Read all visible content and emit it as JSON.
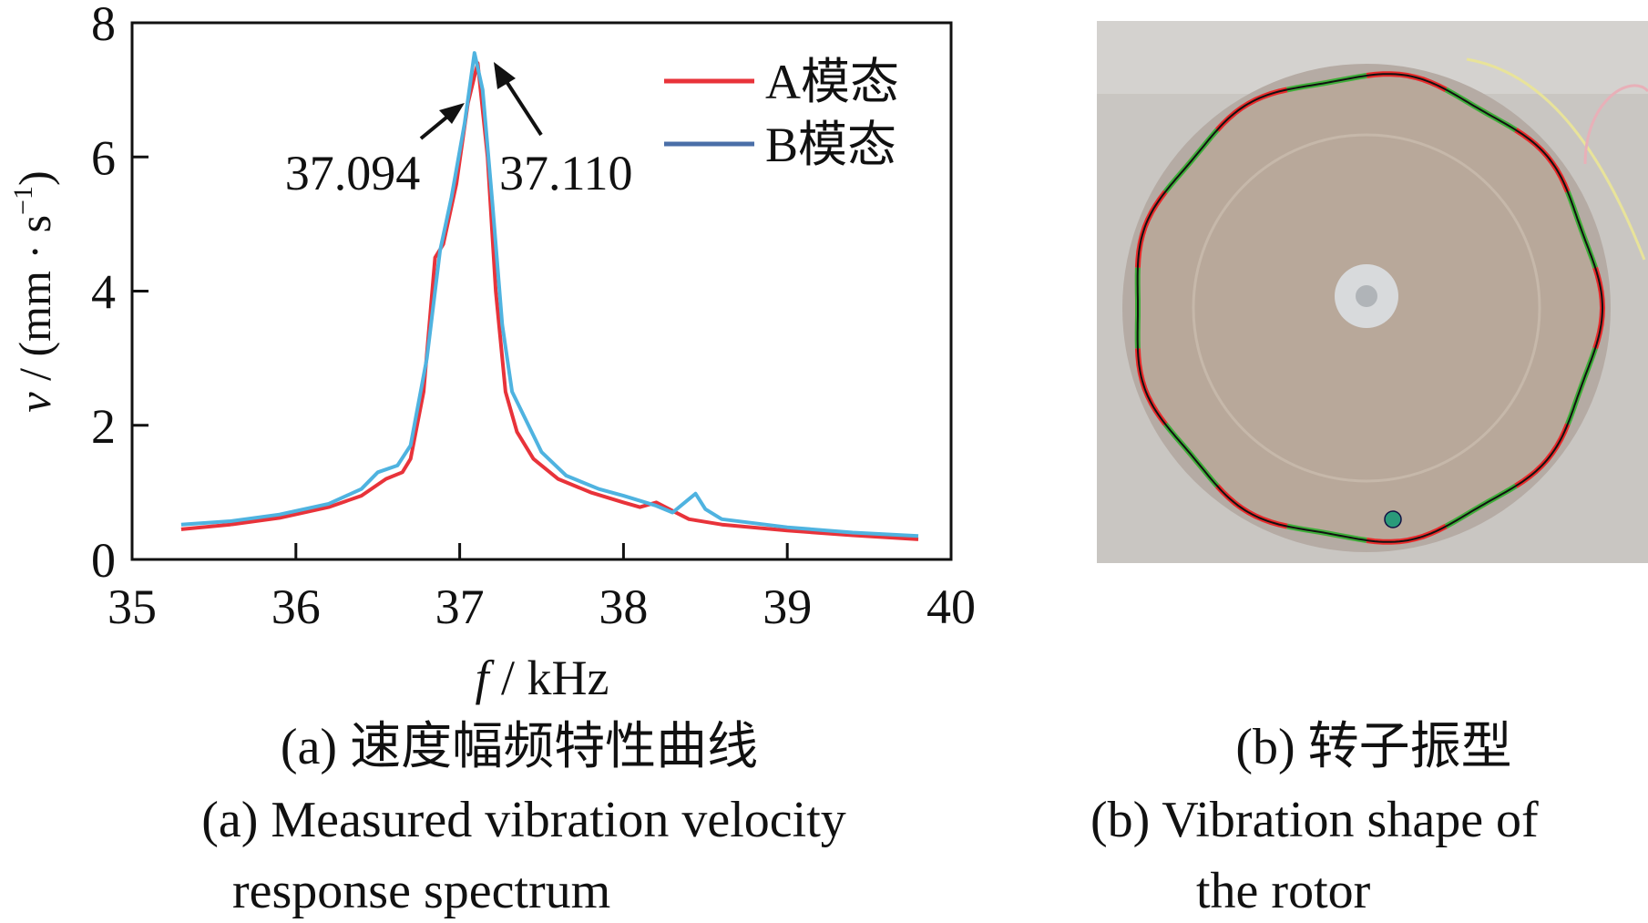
{
  "chart_data": {
    "type": "line",
    "xlabel_italic": "f",
    "xlabel_rest": " / kHz",
    "ylabel_italic": "v",
    "ylabel_rest": " / (mm · s",
    "ylabel_sup": "−1",
    "ylabel_close": ")",
    "xlim": [
      35,
      40
    ],
    "ylim": [
      0,
      8
    ],
    "xticks": [
      "35",
      "36",
      "37",
      "38",
      "39",
      "40"
    ],
    "yticks": [
      "0",
      "2",
      "4",
      "6",
      "8"
    ],
    "grid": false,
    "legend_position": "top-right",
    "series": [
      {
        "name": "A模态",
        "color": "#e8333a",
        "x": [
          35.3,
          35.6,
          35.9,
          36.2,
          36.4,
          36.55,
          36.65,
          36.7,
          36.78,
          36.85,
          36.9,
          36.98,
          37.05,
          37.11,
          37.17,
          37.22,
          37.28,
          37.35,
          37.45,
          37.6,
          37.8,
          38.0,
          38.1,
          38.2,
          38.28,
          38.4,
          38.6,
          39.0,
          39.4,
          39.8
        ],
        "y": [
          0.45,
          0.52,
          0.62,
          0.78,
          0.95,
          1.2,
          1.3,
          1.5,
          2.5,
          4.5,
          4.7,
          5.6,
          6.8,
          7.4,
          6.0,
          4.0,
          2.5,
          1.9,
          1.5,
          1.2,
          1.0,
          0.85,
          0.78,
          0.85,
          0.75,
          0.6,
          0.52,
          0.43,
          0.36,
          0.3
        ]
      },
      {
        "name": "B模态",
        "color": "#4fb3e0",
        "legend_color": "#4a6fa8",
        "x": [
          35.3,
          35.6,
          35.9,
          36.2,
          36.4,
          36.5,
          36.62,
          36.7,
          36.8,
          36.88,
          36.95,
          37.03,
          37.09,
          37.14,
          37.2,
          37.26,
          37.32,
          37.42,
          37.5,
          37.65,
          37.85,
          38.0,
          38.2,
          38.3,
          38.4,
          38.44,
          38.5,
          38.6,
          39.0,
          39.4,
          39.8
        ],
        "y": [
          0.52,
          0.57,
          0.67,
          0.83,
          1.05,
          1.3,
          1.4,
          1.7,
          3.0,
          4.6,
          5.4,
          6.5,
          7.55,
          7.0,
          5.3,
          3.5,
          2.5,
          2.0,
          1.6,
          1.25,
          1.05,
          0.95,
          0.8,
          0.7,
          0.9,
          0.98,
          0.75,
          0.6,
          0.48,
          0.4,
          0.35
        ]
      }
    ],
    "annotations": [
      {
        "text": "37.094",
        "x": 37.094
      },
      {
        "text": "37.110",
        "x": 37.11
      }
    ]
  },
  "captions": {
    "a_cn": "(a)  速度幅频特性曲线",
    "a_en_1": "(a)  Measured vibration velocity",
    "a_en_2": "response spectrum",
    "b_cn": "(b)  转子振型",
    "b_en_1": "(b)  Vibration shape of",
    "b_en_2": "the rotor"
  }
}
